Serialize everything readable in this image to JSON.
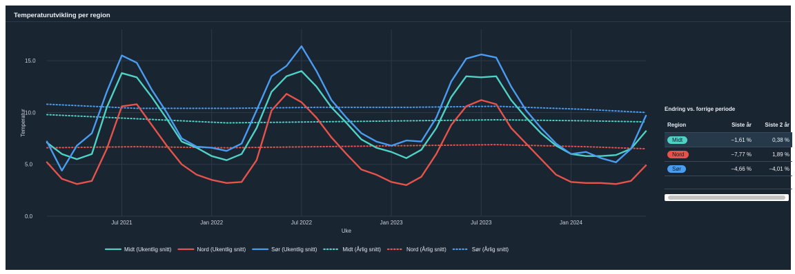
{
  "panel": {
    "title": "Temperaturutvikling per region"
  },
  "colors": {
    "bg": "#1a2532",
    "grid": "#2c3a48",
    "text": "#c9d2dc",
    "midt": "#4fd1c5",
    "nord": "#e5534b",
    "sor": "#4a9cf0"
  },
  "chart_data": {
    "type": "line",
    "xlabel": "Uke",
    "ylabel": "Temperatur",
    "x_range": [
      "2021-02",
      "2024-06"
    ],
    "ylim": [
      0,
      18
    ],
    "yticks": [
      "0.0",
      "5.0",
      "10.0",
      "15.0"
    ],
    "ytick_values": [
      0,
      5,
      10,
      15
    ],
    "xticks": [
      "Jul 2021",
      "Jan 2022",
      "Jul 2022",
      "Jan 2023",
      "Jul 2023",
      "Jan 2024"
    ],
    "xtick_dates": [
      "2021-07",
      "2022-01",
      "2022-07",
      "2023-01",
      "2023-07",
      "2024-01"
    ],
    "grid": true,
    "legend_position": "bottom",
    "series": [
      {
        "name": "Midt (Ukentlig snitt)",
        "color": "#4fd1c5",
        "style": "solid",
        "x": [
          "2021-02",
          "2021-03",
          "2021-04",
          "2021-05",
          "2021-06",
          "2021-07",
          "2021-08",
          "2021-09",
          "2021-10",
          "2021-11",
          "2021-12",
          "2022-01",
          "2022-02",
          "2022-03",
          "2022-04",
          "2022-05",
          "2022-06",
          "2022-07",
          "2022-08",
          "2022-09",
          "2022-10",
          "2022-11",
          "2022-12",
          "2023-01",
          "2023-02",
          "2023-03",
          "2023-04",
          "2023-05",
          "2023-06",
          "2023-07",
          "2023-08",
          "2023-09",
          "2023-10",
          "2023-11",
          "2023-12",
          "2024-01",
          "2024-02",
          "2024-03",
          "2024-04",
          "2024-05",
          "2024-06"
        ],
        "y": [
          7.1,
          6.0,
          5.5,
          6.0,
          10.5,
          13.8,
          13.4,
          11.5,
          9.4,
          7.2,
          6.6,
          5.8,
          5.4,
          6.0,
          8.5,
          12.0,
          13.5,
          14.0,
          12.5,
          10.5,
          9.0,
          7.4,
          6.6,
          6.2,
          5.6,
          6.4,
          8.5,
          11.5,
          13.5,
          13.4,
          13.5,
          11.2,
          9.5,
          8.0,
          6.8,
          6.0,
          5.8,
          5.8,
          5.9,
          6.5,
          8.2
        ]
      },
      {
        "name": "Nord (Ukentlig snitt)",
        "color": "#e5534b",
        "style": "solid",
        "x": [
          "2021-02",
          "2021-03",
          "2021-04",
          "2021-05",
          "2021-06",
          "2021-07",
          "2021-08",
          "2021-09",
          "2021-10",
          "2021-11",
          "2021-12",
          "2022-01",
          "2022-02",
          "2022-03",
          "2022-04",
          "2022-05",
          "2022-06",
          "2022-07",
          "2022-08",
          "2022-09",
          "2022-10",
          "2022-11",
          "2022-12",
          "2023-01",
          "2023-02",
          "2023-03",
          "2023-04",
          "2023-05",
          "2023-06",
          "2023-07",
          "2023-08",
          "2023-09",
          "2023-10",
          "2023-11",
          "2023-12",
          "2024-01",
          "2024-02",
          "2024-03",
          "2024-04",
          "2024-05",
          "2024-06"
        ],
        "y": [
          5.2,
          3.6,
          3.1,
          3.4,
          6.5,
          10.6,
          10.8,
          8.8,
          6.8,
          5.0,
          4.0,
          3.5,
          3.2,
          3.3,
          5.4,
          10.2,
          11.8,
          11.0,
          9.5,
          7.6,
          6.0,
          4.5,
          4.0,
          3.3,
          3.0,
          3.8,
          6.0,
          8.8,
          10.6,
          11.2,
          10.8,
          8.5,
          7.0,
          5.5,
          4.0,
          3.3,
          3.2,
          3.2,
          3.1,
          3.4,
          4.9
        ]
      },
      {
        "name": "Sør (Ukentlig snitt)",
        "color": "#4a9cf0",
        "style": "solid",
        "x": [
          "2021-02",
          "2021-03",
          "2021-04",
          "2021-05",
          "2021-06",
          "2021-07",
          "2021-08",
          "2021-09",
          "2021-10",
          "2021-11",
          "2021-12",
          "2022-01",
          "2022-02",
          "2022-03",
          "2022-04",
          "2022-05",
          "2022-06",
          "2022-07",
          "2022-08",
          "2022-09",
          "2022-10",
          "2022-11",
          "2022-12",
          "2023-01",
          "2023-02",
          "2023-03",
          "2023-04",
          "2023-05",
          "2023-06",
          "2023-07",
          "2023-08",
          "2023-09",
          "2023-10",
          "2023-11",
          "2023-12",
          "2024-01",
          "2024-02",
          "2024-03",
          "2024-04",
          "2024-05",
          "2024-06"
        ],
        "y": [
          7.2,
          4.4,
          6.8,
          8.0,
          12.0,
          15.5,
          14.8,
          12.2,
          10.0,
          7.5,
          6.7,
          6.6,
          6.3,
          7.0,
          10.2,
          13.5,
          14.5,
          16.4,
          14.0,
          11.2,
          9.5,
          8.0,
          7.2,
          6.8,
          7.3,
          7.2,
          9.5,
          13.0,
          15.2,
          15.6,
          15.3,
          12.5,
          10.2,
          8.5,
          7.0,
          6.0,
          6.2,
          5.6,
          5.2,
          6.5,
          9.7
        ]
      },
      {
        "name": "Midt (Årlig snitt)",
        "color": "#4fd1c5",
        "style": "dotted",
        "x": [
          "2021-02",
          "2021-08",
          "2022-02",
          "2022-08",
          "2023-02",
          "2023-08",
          "2024-02",
          "2024-06"
        ],
        "y": [
          9.8,
          9.4,
          9.0,
          9.1,
          9.2,
          9.3,
          9.2,
          9.1
        ]
      },
      {
        "name": "Nord (Årlig snitt)",
        "color": "#e5534b",
        "style": "dotted",
        "x": [
          "2021-02",
          "2021-08",
          "2022-02",
          "2022-08",
          "2023-02",
          "2023-08",
          "2024-02",
          "2024-06"
        ],
        "y": [
          6.6,
          6.7,
          6.6,
          6.7,
          6.8,
          6.9,
          6.7,
          6.5
        ]
      },
      {
        "name": "Sør (Årlig snitt)",
        "color": "#4a9cf0",
        "style": "dotted",
        "x": [
          "2021-02",
          "2021-08",
          "2022-02",
          "2022-08",
          "2023-02",
          "2023-08",
          "2024-02",
          "2024-06"
        ],
        "y": [
          10.8,
          10.4,
          10.4,
          10.5,
          10.5,
          10.6,
          10.3,
          10.0
        ]
      }
    ]
  },
  "side_table": {
    "title": "Endring vs. forrige periode",
    "headers": [
      "Region",
      "Siste år",
      "Siste 2 år"
    ],
    "rows": [
      {
        "region": "Midt",
        "color": "#4fd1c5",
        "last_year": "−1,61 %",
        "last_2y": "0,38 %"
      },
      {
        "region": "Nord",
        "color": "#e5534b",
        "last_year": "−7,77 %",
        "last_2y": "1,89 %"
      },
      {
        "region": "Sør",
        "color": "#4a9cf0",
        "last_year": "−4,66 %",
        "last_2y": "−4,01 %"
      }
    ]
  }
}
